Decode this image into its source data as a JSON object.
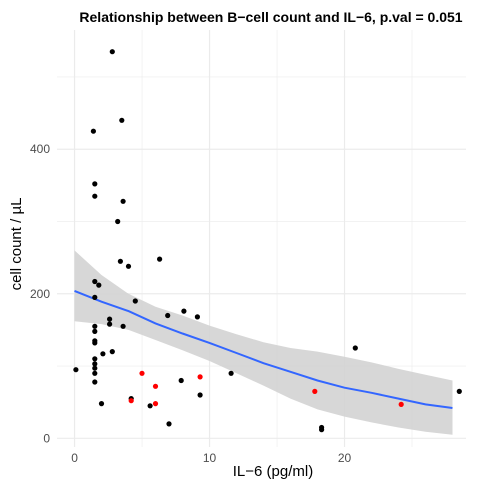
{
  "chart_data": {
    "type": "scatter",
    "title": "Relationship between B−cell count and IL−6, p.val = 0.051",
    "xlabel": "IL−6 (pg/ml)",
    "ylabel": "cell count / µL",
    "xlim": [
      -1.3,
      29.0
    ],
    "ylim": [
      -12,
      565
    ],
    "x_ticks": [
      0,
      10,
      20
    ],
    "y_ticks": [
      0,
      200,
      400
    ],
    "x_tick_labels": [
      "0",
      "10",
      "20"
    ],
    "y_tick_labels": [
      "0",
      "200",
      "400"
    ],
    "grid": true,
    "legend": "none",
    "colors": {
      "black_points": "#000000",
      "red_points": "#ff0000",
      "fit_line": "#3366ff",
      "confidence_band": "#d3d3d3",
      "grid": "#ebebeb"
    },
    "series": [
      {
        "points": [
          {
            "x": 0.1,
            "y": 95
          },
          {
            "x": 1.4,
            "y": 425
          },
          {
            "x": 1.5,
            "y": 352
          },
          {
            "x": 1.5,
            "y": 335
          },
          {
            "x": 1.5,
            "y": 217
          },
          {
            "x": 1.8,
            "y": 212
          },
          {
            "x": 1.5,
            "y": 195
          },
          {
            "x": 1.5,
            "y": 155
          },
          {
            "x": 1.5,
            "y": 148
          },
          {
            "x": 1.5,
            "y": 135
          },
          {
            "x": 1.5,
            "y": 132
          },
          {
            "x": 1.5,
            "y": 110
          },
          {
            "x": 1.5,
            "y": 103
          },
          {
            "x": 1.5,
            "y": 97
          },
          {
            "x": 1.5,
            "y": 90
          },
          {
            "x": 1.5,
            "y": 78
          },
          {
            "x": 2.0,
            "y": 48
          },
          {
            "x": 2.1,
            "y": 117
          },
          {
            "x": 2.6,
            "y": 165
          },
          {
            "x": 2.6,
            "y": 158
          },
          {
            "x": 2.8,
            "y": 120
          },
          {
            "x": 2.8,
            "y": 535
          },
          {
            "x": 3.2,
            "y": 300
          },
          {
            "x": 3.4,
            "y": 245
          },
          {
            "x": 3.5,
            "y": 440
          },
          {
            "x": 3.6,
            "y": 328
          },
          {
            "x": 3.6,
            "y": 155
          },
          {
            "x": 4.0,
            "y": 238
          },
          {
            "x": 4.2,
            "y": 55
          },
          {
            "x": 4.5,
            "y": 190
          },
          {
            "x": 5.6,
            "y": 45
          },
          {
            "x": 6.3,
            "y": 248
          },
          {
            "x": 6.9,
            "y": 170
          },
          {
            "x": 7.0,
            "y": 20
          },
          {
            "x": 7.9,
            "y": 80
          },
          {
            "x": 8.1,
            "y": 176
          },
          {
            "x": 9.1,
            "y": 168
          },
          {
            "x": 9.3,
            "y": 60
          },
          {
            "x": 11.6,
            "y": 90
          },
          {
            "x": 18.3,
            "y": 15
          },
          {
            "x": 18.3,
            "y": 12
          },
          {
            "x": 20.8,
            "y": 125
          },
          {
            "x": 28.5,
            "y": 65
          }
        ]
      },
      {
        "points": [
          {
            "x": 4.2,
            "y": 52
          },
          {
            "x": 5.0,
            "y": 90
          },
          {
            "x": 6.0,
            "y": 72
          },
          {
            "x": 6.0,
            "y": 48
          },
          {
            "x": 9.3,
            "y": 85
          },
          {
            "x": 17.8,
            "y": 65
          },
          {
            "x": 24.2,
            "y": 47
          }
        ]
      }
    ],
    "fit": {
      "x": [
        0,
        2,
        4,
        6,
        8,
        10,
        12,
        14,
        16,
        18,
        20,
        22,
        24,
        26,
        28
      ],
      "y": [
        204,
        189,
        176,
        159,
        145,
        132,
        118,
        104,
        92,
        80,
        70,
        63,
        55,
        47,
        42
      ],
      "lower": [
        162,
        158,
        150,
        136,
        122,
        107,
        90,
        73,
        55,
        40,
        30,
        22,
        15,
        9,
        5
      ],
      "upper": [
        260,
        226,
        200,
        182,
        170,
        156,
        144,
        133,
        125,
        120,
        113,
        105,
        96,
        88,
        80
      ]
    }
  }
}
